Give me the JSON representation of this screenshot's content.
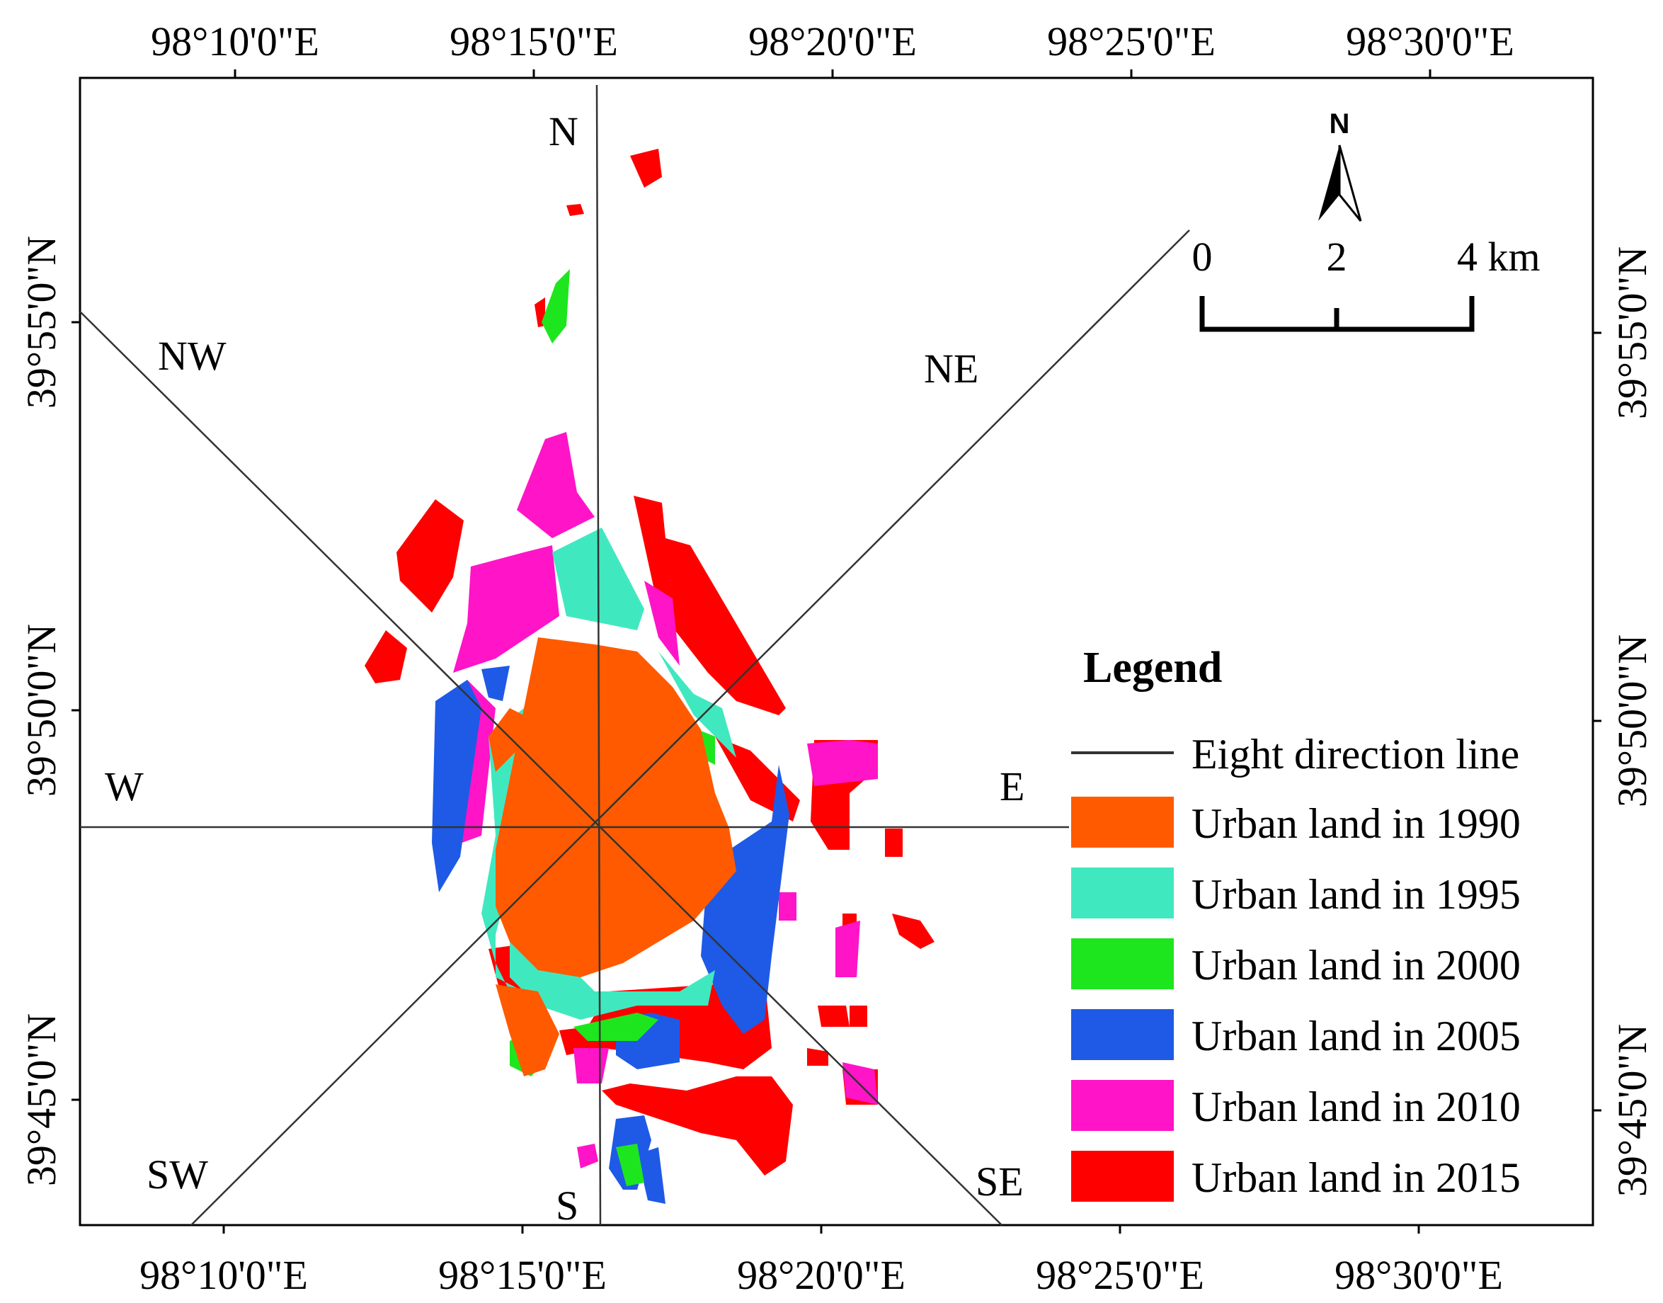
{
  "map": {
    "top_lon_labels": [
      "98°10'0\"E",
      "98°15'0\"E",
      "98°20'0\"E",
      "98°25'0\"E",
      "98°30'0\"E"
    ],
    "bottom_lon_labels": [
      "98°10'0\"E",
      "98°15'0\"E",
      "98°20'0\"E",
      "98°25'0\"E",
      "98°30'0\"E"
    ],
    "left_lat_labels": [
      "39°55'0\"N",
      "39°50'0\"N",
      "39°45'0\"N"
    ],
    "right_lat_labels": [
      "39°55'0\"N",
      "39°50'0\"N",
      "39°45'0\"N"
    ],
    "directions": {
      "n": "N",
      "ne": "NE",
      "e": "E",
      "se": "SE",
      "s": "S",
      "sw": "SW",
      "w": "W",
      "nw": "NW"
    }
  },
  "north_arrow": {
    "label": "N"
  },
  "scale_bar": {
    "labels": [
      "0",
      "2",
      "4 km"
    ]
  },
  "legend": {
    "title": "Legend",
    "items": [
      {
        "label": "Eight direction line",
        "color": "#333333",
        "kind": "line"
      },
      {
        "label": "Urban land in 1990",
        "color": "#FF5A00",
        "kind": "patch"
      },
      {
        "label": "Urban land in 1995",
        "color": "#40E8C0",
        "kind": "patch"
      },
      {
        "label": "Urban land in 2000",
        "color": "#1EE61E",
        "kind": "patch"
      },
      {
        "label": "Urban land in 2005",
        "color": "#1E5AE6",
        "kind": "patch"
      },
      {
        "label": "Urban land in 2010",
        "color": "#FF14C8",
        "kind": "patch"
      },
      {
        "label": "Urban land in 2015",
        "color": "#FF0000",
        "kind": "patch"
      }
    ]
  }
}
